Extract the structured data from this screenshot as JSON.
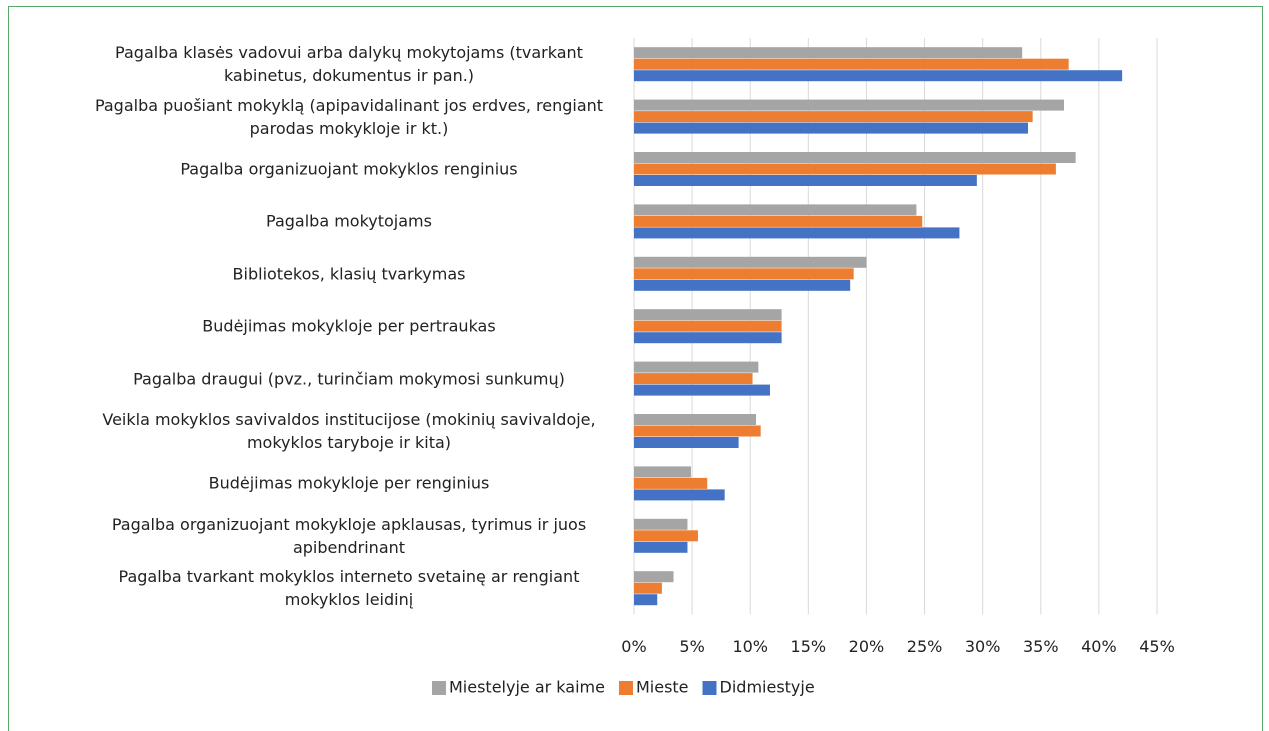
{
  "chart_data": {
    "type": "hbar",
    "categories": [
      "Pagalba klasės vadovui arba dalykų mokytojams (tvarkant kabinetus, dokumentus ir pan.)",
      "Pagalba puošiant mokyklą (apipavidalinant jos erdves, rengiant parodas mokykloje ir kt.)",
      "Pagalba organizuojant mokyklos renginius",
      "Pagalba mokytojams",
      "Bibliotekos, klasių tvarkymas",
      "Budėjimas mokykloje per pertraukas",
      "Pagalba draugui (pvz., turinčiam mokymosi sunkumų)",
      "Veikla mokyklos savivaldos institucijose (mokinių savivaldoje, mokyklos taryboje ir kita)",
      "Budėjimas mokykloje per renginius",
      "Pagalba organizuojant mokykloje apklausas, tyrimus ir juos apibendrinant",
      "Pagalba tvarkant mokyklos interneto svetainę ar rengiant mokyklos leidinį"
    ],
    "series": [
      {
        "name": "Miestelyje ar kaime",
        "color": "#a5a5a5",
        "values": [
          33.4,
          37.0,
          38.0,
          24.3,
          20.0,
          12.7,
          10.7,
          10.5,
          4.9,
          4.6,
          3.4
        ]
      },
      {
        "name": "Mieste",
        "color": "#ed7d31",
        "values": [
          37.4,
          34.3,
          36.3,
          24.8,
          18.9,
          12.7,
          10.2,
          10.9,
          6.3,
          5.5,
          2.4
        ]
      },
      {
        "name": "Didmiestyje",
        "color": "#4472c4",
        "values": [
          42.0,
          33.9,
          29.5,
          28.0,
          18.6,
          12.7,
          11.7,
          9.0,
          7.8,
          4.6,
          2.0
        ]
      }
    ],
    "xlim": [
      0,
      45
    ],
    "xticks": [
      {
        "value": 0,
        "label": "0%"
      },
      {
        "value": 5,
        "label": "5%"
      },
      {
        "value": 10,
        "label": "10%"
      },
      {
        "value": 15,
        "label": "15%"
      },
      {
        "value": 20,
        "label": "20%"
      },
      {
        "value": 25,
        "label": "25%"
      },
      {
        "value": 30,
        "label": "30%"
      },
      {
        "value": 35,
        "label": "35%"
      },
      {
        "value": 40,
        "label": "40%"
      },
      {
        "value": 45,
        "label": "45%"
      }
    ],
    "grid": true,
    "legend": "bottom"
  }
}
